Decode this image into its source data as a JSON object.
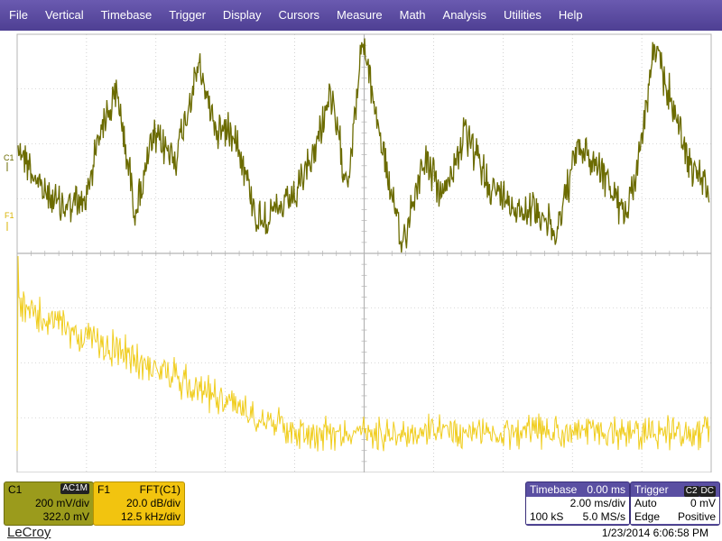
{
  "menu": [
    "File",
    "Vertical",
    "Timebase",
    "Trigger",
    "Display",
    "Cursors",
    "Measure",
    "Math",
    "Analysis",
    "Utilities",
    "Help"
  ],
  "colors": {
    "c1_trace": "#6b6b00",
    "f1_trace": "#f0cd1e",
    "grid": "#b4b4b4",
    "menubar": "#5a4ba0"
  },
  "markers": {
    "c1": "C1",
    "f1": "F1"
  },
  "c1": {
    "label": "C1",
    "coupling": "AC1M",
    "vdiv": "200 mV/div",
    "offset": "322.0 mV"
  },
  "f1": {
    "label": "F1",
    "func": "FFT(C1)",
    "vdiv": "20.0 dB/div",
    "hdiv": "12.5 kHz/div"
  },
  "timebase": {
    "label": "Timebase",
    "delay": "0.00 ms",
    "tdiv": "2.00 ms/div",
    "samples": "100 kS",
    "rate": "5.0 MS/s"
  },
  "trigger": {
    "label": "Trigger",
    "source": "C2",
    "coupling": "DC",
    "mode": "Auto",
    "level": "0 mV",
    "type": "Edge",
    "slope": "Positive"
  },
  "brand": "LeCroy",
  "datetime": "1/23/2014 6:06:58 PM"
}
